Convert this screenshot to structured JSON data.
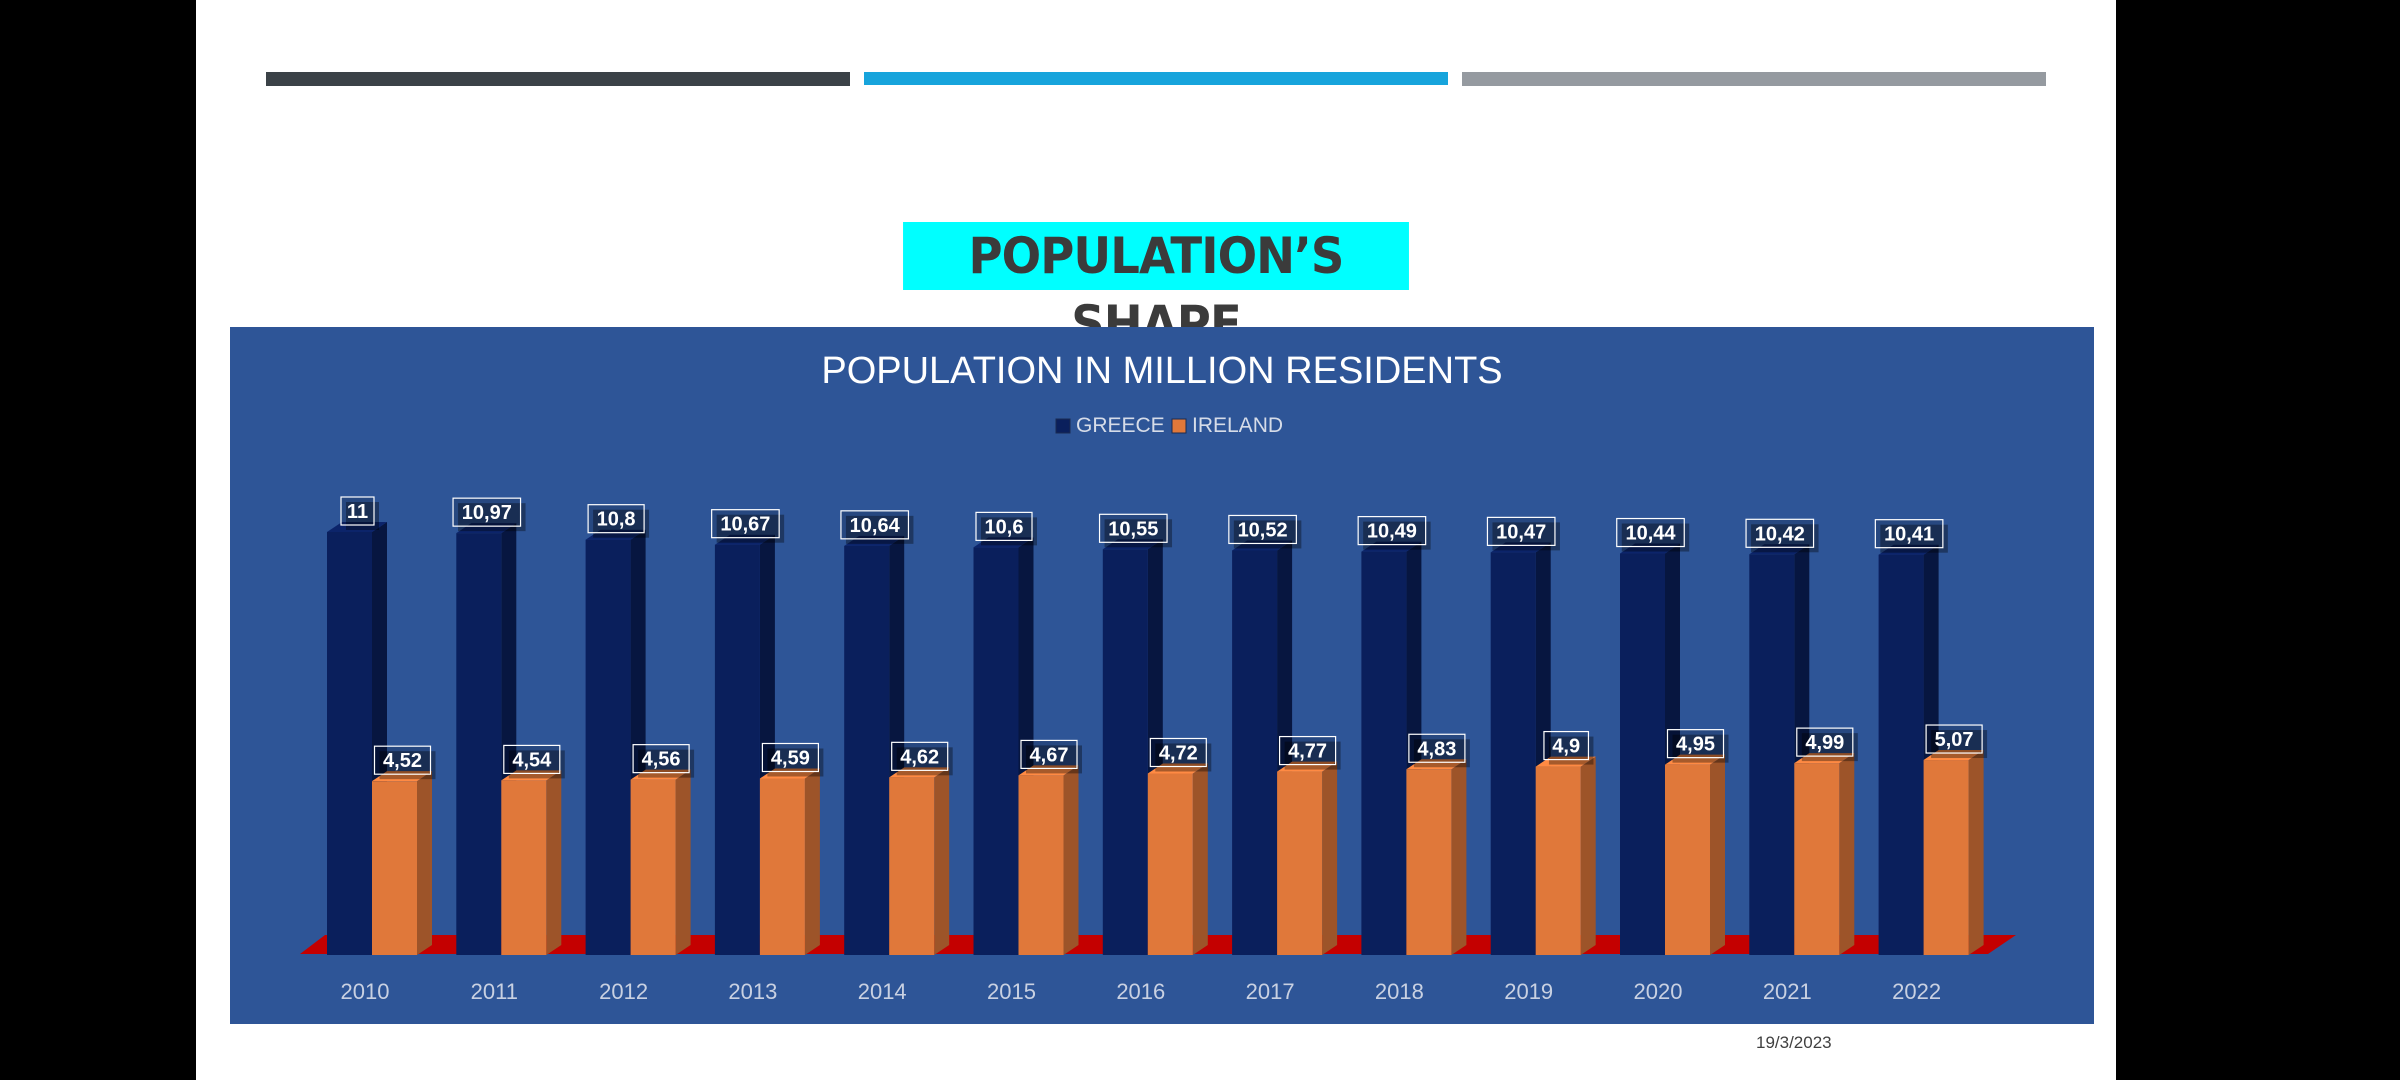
{
  "slide": {
    "title": "POPULATION’S SHAPE",
    "date": "19/3/2023"
  },
  "colors": {
    "greece": "#0a1f5c",
    "ireland": "#e0783a",
    "chart_background": "#2e5597",
    "floor": "#c40000",
    "title_highlight": "#00ffff",
    "bar_dark": "#3b4247",
    "bar_blue": "#17a4dc",
    "bar_gray": "#959aa0"
  },
  "chart_data": {
    "type": "bar",
    "title": "POPULATION IN MILLION RESIDENTS",
    "categories": [
      "2010",
      "2011",
      "2012",
      "2013",
      "2014",
      "2015",
      "2016",
      "2017",
      "2018",
      "2019",
      "2020",
      "2021",
      "2022"
    ],
    "series": [
      {
        "name": "GREECE",
        "values": [
          11,
          10.97,
          10.8,
          10.67,
          10.64,
          10.6,
          10.55,
          10.52,
          10.49,
          10.47,
          10.44,
          10.42,
          10.41
        ],
        "labels": [
          "11",
          "10,97",
          "10,8",
          "10,67",
          "10,64",
          "10,6",
          "10,55",
          "10,52",
          "10,49",
          "10,47",
          "10,44",
          "10,42",
          "10,41"
        ]
      },
      {
        "name": "IRELAND",
        "values": [
          4.52,
          4.54,
          4.56,
          4.59,
          4.62,
          4.67,
          4.72,
          4.77,
          4.83,
          4.9,
          4.95,
          4.99,
          5.07
        ],
        "labels": [
          "4,52",
          "4,54",
          "4,56",
          "4,59",
          "4,62",
          "4,67",
          "4,72",
          "4,77",
          "4,83",
          "4,9",
          "4,95",
          "4,99",
          "5,07"
        ]
      }
    ],
    "legend_position": "top-center",
    "ylim": [
      0,
      11
    ],
    "grid": false,
    "style": "3d-clustered-column"
  }
}
